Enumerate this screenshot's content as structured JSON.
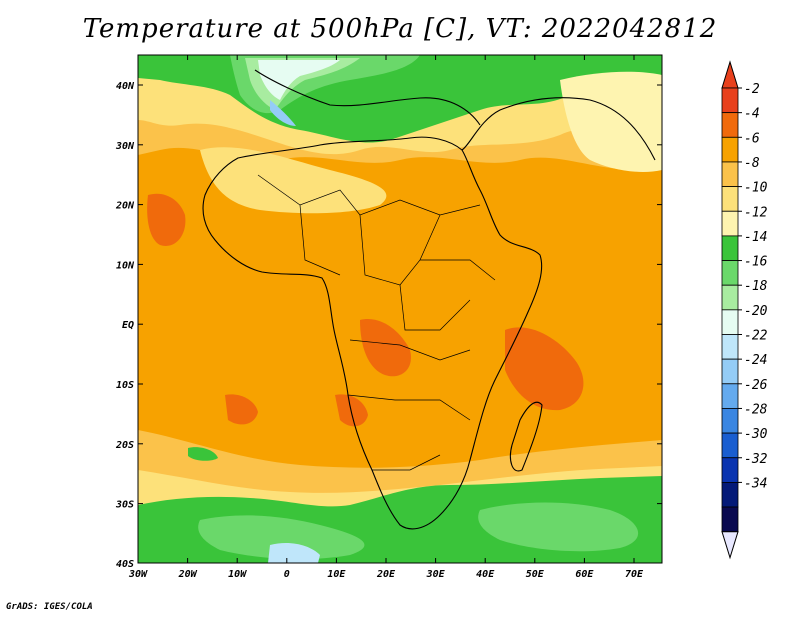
{
  "title": "Temperature at 500hPa [C], VT: 2022042812",
  "credit": "GrADS: IGES/COLA",
  "lat_ticks": [
    "40N",
    "30N",
    "20N",
    "10N",
    "EQ",
    "10S",
    "20S",
    "30S",
    "40S"
  ],
  "lon_ticks": [
    "30W",
    "20W",
    "10W",
    "0",
    "10E",
    "20E",
    "30E",
    "40E",
    "50E",
    "60E",
    "70E"
  ],
  "colorbar": {
    "labels": [
      "-2",
      "-4",
      "-6",
      "-8",
      "-10",
      "-12",
      "-14",
      "-16",
      "-18",
      "-20",
      "-22",
      "-24",
      "-26",
      "-28",
      "-30",
      "-32",
      "-34"
    ],
    "colors": [
      "#e8401c",
      "#f06a0c",
      "#f7a200",
      "#fbc24a",
      "#fde17a",
      "#fef4b0",
      "#3ac43a",
      "#6ad86a",
      "#a8eca0",
      "#e6fcf2",
      "#bfe6fa",
      "#94ccf6",
      "#64aaee",
      "#3a86e2",
      "#1a5ed0",
      "#0a34b0",
      "#041a78",
      "#0a0a50"
    ],
    "top_arrow_color": "#e8401c",
    "bottom_arrow_color": "#e8e8ff"
  },
  "palette": {
    "warm_orange": "#f7a200",
    "hot": "#f06a0c",
    "light_orange": "#fbc24a",
    "yellow": "#fde17a",
    "pale_yellow": "#fef4b0",
    "green": "#3ac43a",
    "light_green": "#6ad86a",
    "pale_green": "#a8eca0",
    "pale_blue": "#e6fcf2",
    "light_blue": "#bfe6fa",
    "blue": "#94ccf6"
  }
}
